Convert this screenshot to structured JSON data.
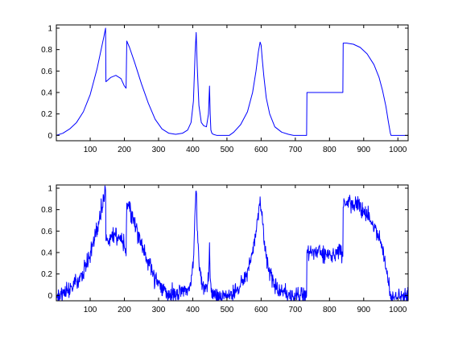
{
  "chart_data": [
    {
      "type": "line",
      "title": "",
      "xlabel": "",
      "ylabel": "",
      "xlim": [
        1,
        1030
      ],
      "ylim": [
        -0.05,
        1.03
      ],
      "grid": false,
      "x_ticks": [
        "100",
        "200",
        "300",
        "400",
        "500",
        "600",
        "700",
        "800",
        "900",
        "1000"
      ],
      "y_ticks": [
        "0",
        "0.2",
        "0.4",
        "0.6",
        "0.8",
        "1"
      ],
      "series": [
        {
          "color": "#0000ff",
          "x": [
            1,
            20,
            40,
            60,
            80,
            100,
            120,
            140,
            145,
            146,
            160,
            175,
            190,
            200,
            205,
            207,
            215,
            230,
            250,
            270,
            290,
            310,
            330,
            350,
            370,
            385,
            395,
            402,
            407,
            410,
            413,
            418,
            425,
            432,
            440,
            446,
            449,
            451,
            453,
            456,
            460,
            470,
            490,
            505,
            507,
            520,
            540,
            560,
            575,
            585,
            592,
            597,
            600,
            603,
            608,
            615,
            625,
            640,
            660,
            680,
            695,
            710,
            720,
            730,
            733,
            734,
            760,
            790,
            820,
            839,
            840,
            850,
            870,
            890,
            910,
            930,
            945,
            955,
            965,
            972,
            978,
            980,
            1000,
            1020,
            1030
          ],
          "y": [
            0.0,
            0.02,
            0.06,
            0.12,
            0.22,
            0.38,
            0.62,
            0.92,
            1.0,
            0.5,
            0.54,
            0.56,
            0.53,
            0.46,
            0.44,
            0.88,
            0.82,
            0.68,
            0.48,
            0.3,
            0.15,
            0.06,
            0.02,
            0.01,
            0.02,
            0.05,
            0.12,
            0.32,
            0.78,
            0.96,
            0.65,
            0.28,
            0.12,
            0.09,
            0.08,
            0.2,
            0.46,
            0.2,
            0.05,
            0.02,
            0.01,
            0.0,
            0.0,
            0.0,
            0.0,
            0.03,
            0.1,
            0.22,
            0.4,
            0.6,
            0.78,
            0.87,
            0.84,
            0.72,
            0.55,
            0.35,
            0.2,
            0.08,
            0.03,
            0.01,
            0.0,
            0.0,
            0.0,
            0.0,
            0.0,
            0.4,
            0.4,
            0.4,
            0.4,
            0.4,
            0.86,
            0.86,
            0.85,
            0.82,
            0.76,
            0.66,
            0.54,
            0.42,
            0.27,
            0.13,
            0.02,
            0.0,
            0.0,
            0.0,
            0.0
          ]
        }
      ]
    },
    {
      "type": "line",
      "title": "",
      "xlabel": "",
      "ylabel": "",
      "xlim": [
        1,
        1030
      ],
      "ylim": [
        -0.05,
        1.03
      ],
      "grid": false,
      "x_ticks": [
        "100",
        "200",
        "300",
        "400",
        "500",
        "600",
        "700",
        "800",
        "900",
        "1000"
      ],
      "y_ticks": [
        "0",
        "0.2",
        "0.4",
        "0.6",
        "0.8",
        "1"
      ],
      "series": [
        {
          "color": "#0000ff",
          "x": [
            1,
            20,
            40,
            60,
            80,
            100,
            120,
            140,
            145,
            146,
            160,
            175,
            190,
            200,
            205,
            207,
            215,
            230,
            250,
            270,
            290,
            310,
            330,
            350,
            370,
            385,
            395,
            402,
            407,
            410,
            413,
            418,
            425,
            432,
            440,
            446,
            449,
            451,
            453,
            456,
            460,
            470,
            490,
            505,
            507,
            520,
            540,
            560,
            575,
            585,
            592,
            597,
            600,
            603,
            608,
            615,
            625,
            640,
            660,
            680,
            695,
            710,
            720,
            730,
            733,
            734,
            760,
            790,
            820,
            839,
            840,
            850,
            870,
            890,
            910,
            930,
            945,
            955,
            965,
            972,
            978,
            980,
            1000,
            1020,
            1030
          ],
          "y": [
            0.0,
            0.02,
            0.06,
            0.12,
            0.22,
            0.38,
            0.62,
            0.92,
            1.0,
            0.5,
            0.54,
            0.56,
            0.53,
            0.46,
            0.44,
            0.88,
            0.82,
            0.68,
            0.48,
            0.3,
            0.15,
            0.06,
            0.02,
            0.01,
            0.02,
            0.05,
            0.12,
            0.32,
            0.78,
            0.96,
            0.65,
            0.28,
            0.12,
            0.09,
            0.08,
            0.2,
            0.46,
            0.2,
            0.05,
            0.02,
            0.01,
            0.0,
            0.0,
            0.0,
            0.0,
            0.03,
            0.1,
            0.22,
            0.4,
            0.6,
            0.78,
            0.87,
            0.84,
            0.72,
            0.55,
            0.35,
            0.2,
            0.08,
            0.03,
            0.01,
            0.0,
            0.0,
            0.0,
            0.0,
            0.0,
            0.4,
            0.4,
            0.4,
            0.4,
            0.4,
            0.86,
            0.86,
            0.85,
            0.82,
            0.76,
            0.66,
            0.54,
            0.42,
            0.27,
            0.13,
            0.02,
            0.0,
            0.0,
            0.0,
            0.0
          ],
          "noise_amplitude": 0.05
        }
      ]
    }
  ]
}
